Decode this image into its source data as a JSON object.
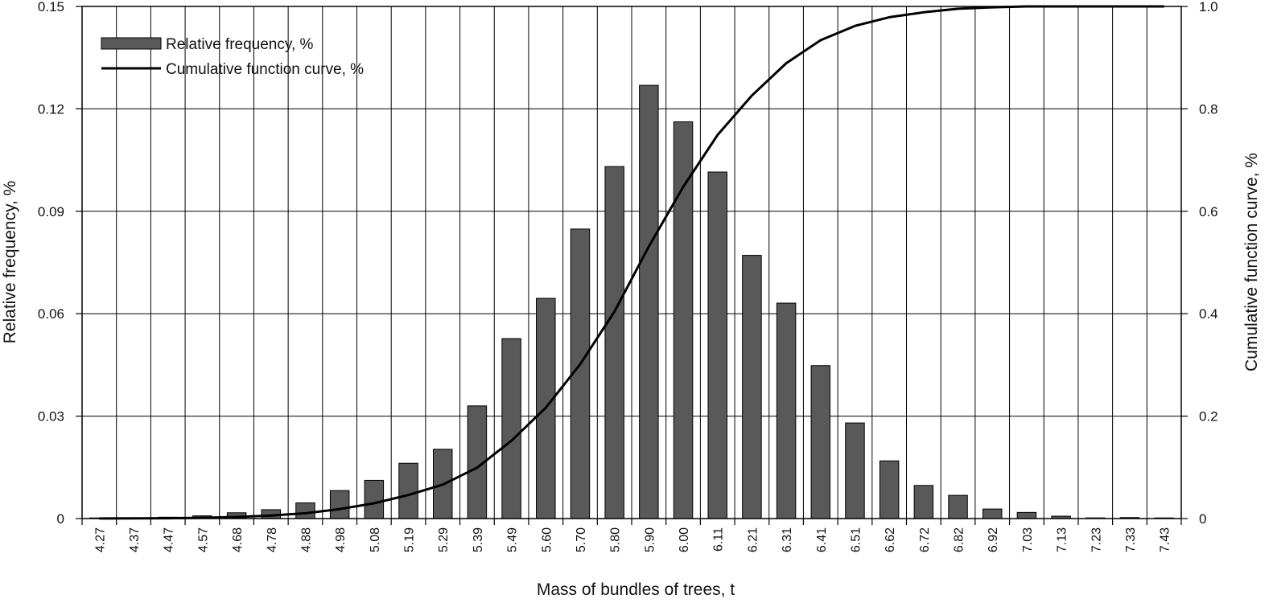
{
  "chart_data": {
    "type": "bar",
    "categories": [
      "4.27",
      "4.37",
      "4.47",
      "4.57",
      "4.68",
      "4.78",
      "4.88",
      "4.98",
      "5.08",
      "5.19",
      "5.29",
      "5.39",
      "5.49",
      "5.60",
      "5.70",
      "5.80",
      "5.90",
      "6.00",
      "6.11",
      "6.21",
      "6.31",
      "6.41",
      "6.51",
      "6.62",
      "6.72",
      "6.82",
      "6.92",
      "7.03",
      "7.13",
      "7.23",
      "7.33",
      "7.43"
    ],
    "series": [
      {
        "name": "Relative frequency, %",
        "kind": "bar",
        "axis": "left",
        "color": "#595959",
        "values": [
          0.0001,
          0.0002,
          0.0004,
          0.0008,
          0.0017,
          0.0026,
          0.0046,
          0.0082,
          0.0112,
          0.0162,
          0.0203,
          0.033,
          0.0527,
          0.0645,
          0.0848,
          0.1031,
          0.1269,
          0.1162,
          0.1015,
          0.0771,
          0.0631,
          0.0448,
          0.028,
          0.0169,
          0.0097,
          0.0068,
          0.0028,
          0.0018,
          0.0007,
          0.0002,
          0.0003,
          0.0001
        ]
      },
      {
        "name": "Cumulative function curve, %",
        "kind": "line",
        "axis": "right",
        "color": "#000000",
        "values": [
          0.0001,
          0.0003,
          0.0007,
          0.0015,
          0.0032,
          0.0058,
          0.0104,
          0.0186,
          0.0298,
          0.046,
          0.0663,
          0.0993,
          0.152,
          0.2165,
          0.3013,
          0.4044,
          0.5313,
          0.6475,
          0.749,
          0.8261,
          0.8892,
          0.934,
          0.962,
          0.9789,
          0.9886,
          0.9954,
          0.9982,
          1.0,
          1.0,
          1.0,
          1.0,
          1.0
        ]
      }
    ],
    "xlabel": "Mass of bundles of trees, t",
    "ylabel": "Relative frequency, %",
    "y2label": "Cumulative function curve, %",
    "ylim": [
      0,
      0.15
    ],
    "y2lim": [
      0,
      1.0
    ],
    "yticks": [
      "0",
      "0.03",
      "0.06",
      "0.09",
      "0.12",
      "0.15"
    ],
    "y2ticks": [
      "0",
      "0.2",
      "0.4",
      "0.6",
      "0.8",
      "1.0"
    ],
    "grid": true,
    "legend": "top-left"
  }
}
